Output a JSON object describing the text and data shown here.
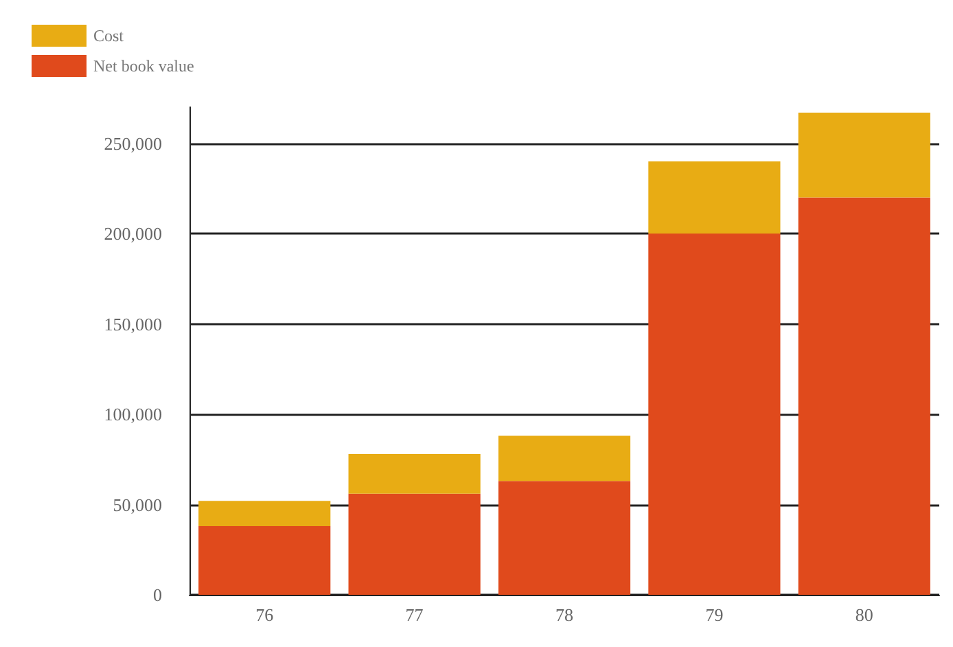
{
  "chart_data": {
    "type": "bar",
    "stacked": true,
    "categories": [
      "76",
      "77",
      "78",
      "79",
      "80"
    ],
    "series": [
      {
        "name": "Net book value",
        "color": "#e04a1c",
        "values": [
          38000,
          56000,
          63000,
          200000,
          220000
        ]
      },
      {
        "name": "Cost",
        "color": "#e8ac14",
        "values": [
          14000,
          22000,
          25000,
          40000,
          47000
        ]
      }
    ],
    "ylim": [
      0,
      270000
    ],
    "yticks": [
      0,
      {
        "value": 50000,
        "label": "50,000"
      },
      {
        "value": 100000,
        "label": "100,000"
      },
      {
        "value": 150000,
        "label": "150,000"
      },
      {
        "value": 200000,
        "label": "200,000"
      },
      {
        "value": 250000,
        "label": "250,000"
      }
    ],
    "grid": "y",
    "legend": "top left"
  }
}
